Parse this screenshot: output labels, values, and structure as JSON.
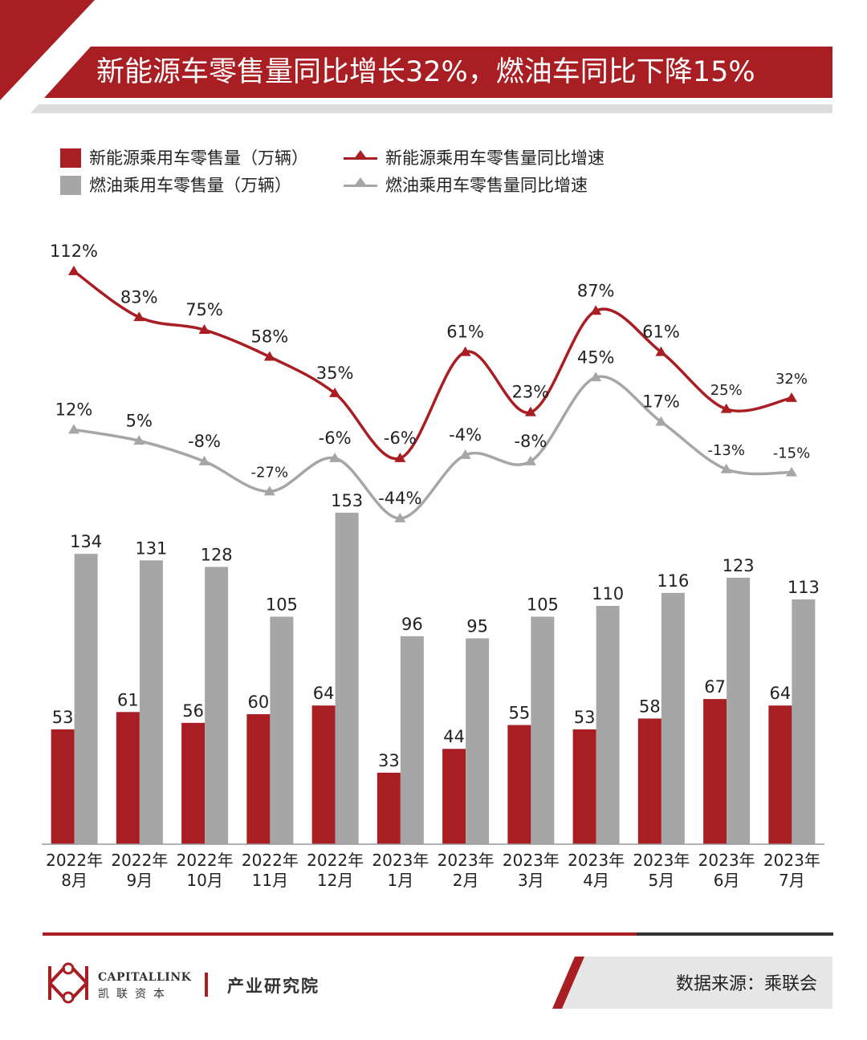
{
  "title": "新能源车零售量同比增长32%，燃油车同比下降15%",
  "legend": {
    "nev_volume": "新能源乘用车零售量（万辆）",
    "fuel_volume": "燃油乘用车零售量（万辆）",
    "nev_growth": "新能源乘用车零售量同比增速",
    "fuel_growth": "燃油乘用车零售量同比增速"
  },
  "source": "数据来源：乘联会",
  "brand": {
    "name_en": "CAPITALLINK",
    "name_cn": "凯联资本",
    "department": "产业研究院"
  },
  "colors": {
    "nev": "#a81e22",
    "fuel": "#a6a6a6",
    "fuel_line": "#a6a6a6"
  },
  "chart_data": {
    "type": "bar+line",
    "categories": [
      [
        "2022年",
        "8月"
      ],
      [
        "2022年",
        "9月"
      ],
      [
        "2022年",
        "10月"
      ],
      [
        "2022年",
        "11月"
      ],
      [
        "2022年",
        "12月"
      ],
      [
        "2023年",
        "1月"
      ],
      [
        "2023年",
        "2月"
      ],
      [
        "2023年",
        "3月"
      ],
      [
        "2023年",
        "4月"
      ],
      [
        "2023年",
        "5月"
      ],
      [
        "2023年",
        "6月"
      ],
      [
        "2023年",
        "7月"
      ]
    ],
    "bar_series": [
      {
        "name": "新能源乘用车零售量（万辆）",
        "values": [
          53,
          61,
          56,
          60,
          64,
          33,
          44,
          55,
          53,
          58,
          67,
          64
        ]
      },
      {
        "name": "燃油乘用车零售量（万辆）",
        "values": [
          134,
          131,
          128,
          105,
          153,
          96,
          95,
          105,
          110,
          116,
          123,
          113
        ]
      }
    ],
    "line_series": [
      {
        "name": "新能源乘用车零售量同比增速",
        "values": [
          112,
          83,
          75,
          58,
          35,
          -6,
          61,
          23,
          87,
          61,
          25,
          32
        ],
        "unit": "%"
      },
      {
        "name": "燃油乘用车零售量同比增速",
        "values": [
          12,
          5,
          -8,
          -27,
          -6,
          -44,
          -4,
          -8,
          45,
          17,
          -13,
          -15
        ],
        "unit": "%"
      }
    ],
    "bar_ylim": [
      0,
      160
    ],
    "line_ylim": [
      -50,
      120
    ],
    "grid": false,
    "legend_position": "top-left"
  }
}
